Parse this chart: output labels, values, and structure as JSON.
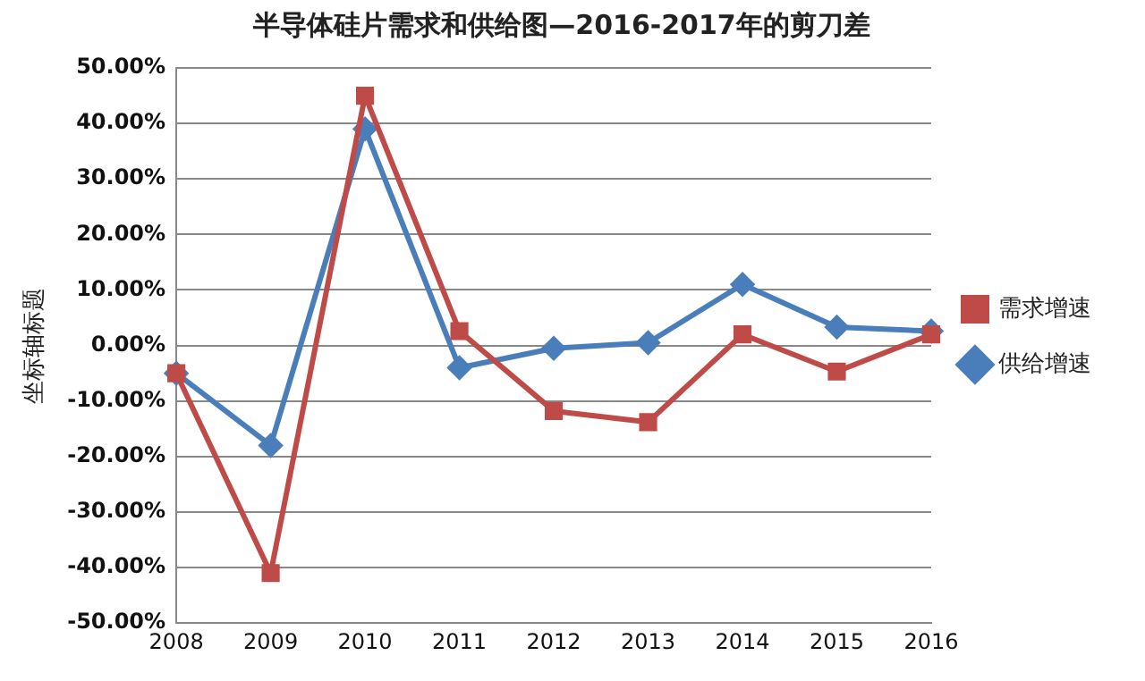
{
  "chart_data": {
    "type": "line",
    "title": "半导体硅片需求和供给图—2016-2017年的剪刀差",
    "ylabel": "坐标轴标题",
    "categories": [
      "2008",
      "2009",
      "2010",
      "2011",
      "2012",
      "2013",
      "2014",
      "2015",
      "2016"
    ],
    "series": [
      {
        "name": "供给增速",
        "color": "#4a7ebb",
        "marker": "diamond",
        "values": [
          -5,
          -18,
          39,
          -4,
          -0.5,
          0.5,
          11,
          3.3,
          2.6
        ]
      },
      {
        "name": "需求增速",
        "color": "#be4b48",
        "marker": "square",
        "values": [
          -5,
          -41,
          45,
          2.6,
          -11.8,
          -13.8,
          2,
          -4.7,
          2
        ]
      }
    ],
    "ylim": [
      -50,
      50
    ],
    "yticks": [
      {
        "value": -50,
        "label": "-50.00%"
      },
      {
        "value": -40,
        "label": "-40.00%"
      },
      {
        "value": -30,
        "label": "-30.00%"
      },
      {
        "value": -20,
        "label": "-20.00%"
      },
      {
        "value": -10,
        "label": "-10.00%"
      },
      {
        "value": 0,
        "label": "0.00%"
      },
      {
        "value": 10,
        "label": "10.00%"
      },
      {
        "value": 20,
        "label": "20.00%"
      },
      {
        "value": 30,
        "label": "30.00%"
      },
      {
        "value": 40,
        "label": "40.00%"
      },
      {
        "value": 50,
        "label": "50.00%"
      }
    ],
    "grid": "y",
    "legend": "right",
    "line_style": "solid"
  }
}
